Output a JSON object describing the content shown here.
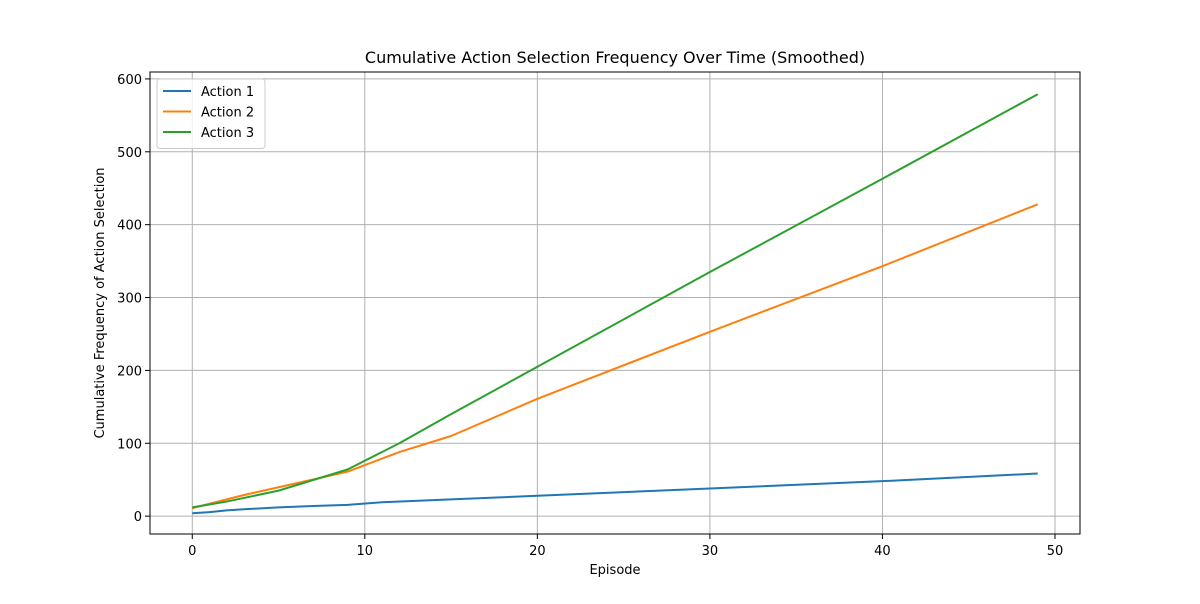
{
  "chart_data": {
    "type": "line",
    "title": "Cumulative Action Selection Frequency Over Time (Smoothed)",
    "xlabel": "Episode",
    "ylabel": "Cumulative Frequency of Action Selection",
    "xlim": [
      -2.45,
      51.45
    ],
    "ylim": [
      -24.5,
      609.5
    ],
    "xticks": [
      0,
      10,
      20,
      30,
      40,
      50
    ],
    "yticks": [
      0,
      100,
      200,
      300,
      400,
      500,
      600
    ],
    "grid": true,
    "legend_position": "upper-left",
    "series": [
      {
        "name": "Action 1",
        "color": "#1f77b4",
        "points": [
          [
            0,
            4
          ],
          [
            1,
            5.5
          ],
          [
            2,
            8
          ],
          [
            3,
            9.5
          ],
          [
            5,
            12
          ],
          [
            7,
            14
          ],
          [
            9,
            15.5
          ],
          [
            11,
            19
          ],
          [
            15,
            23
          ],
          [
            20,
            28
          ],
          [
            30,
            38
          ],
          [
            40,
            48
          ],
          [
            49,
            58.5
          ]
        ]
      },
      {
        "name": "Action 2",
        "color": "#ff7f0e",
        "points": [
          [
            0,
            11
          ],
          [
            3,
            29
          ],
          [
            6,
            45
          ],
          [
            9,
            61
          ],
          [
            12,
            88
          ],
          [
            15,
            110
          ],
          [
            20,
            161
          ],
          [
            30,
            253
          ],
          [
            40,
            343
          ],
          [
            49,
            428
          ]
        ]
      },
      {
        "name": "Action 3",
        "color": "#2ca02c",
        "points": [
          [
            0,
            12
          ],
          [
            2,
            20
          ],
          [
            5,
            35
          ],
          [
            9,
            64
          ],
          [
            12,
            100
          ],
          [
            15,
            140
          ],
          [
            20,
            205
          ],
          [
            30,
            335
          ],
          [
            40,
            463
          ],
          [
            49,
            579
          ]
        ]
      }
    ]
  }
}
